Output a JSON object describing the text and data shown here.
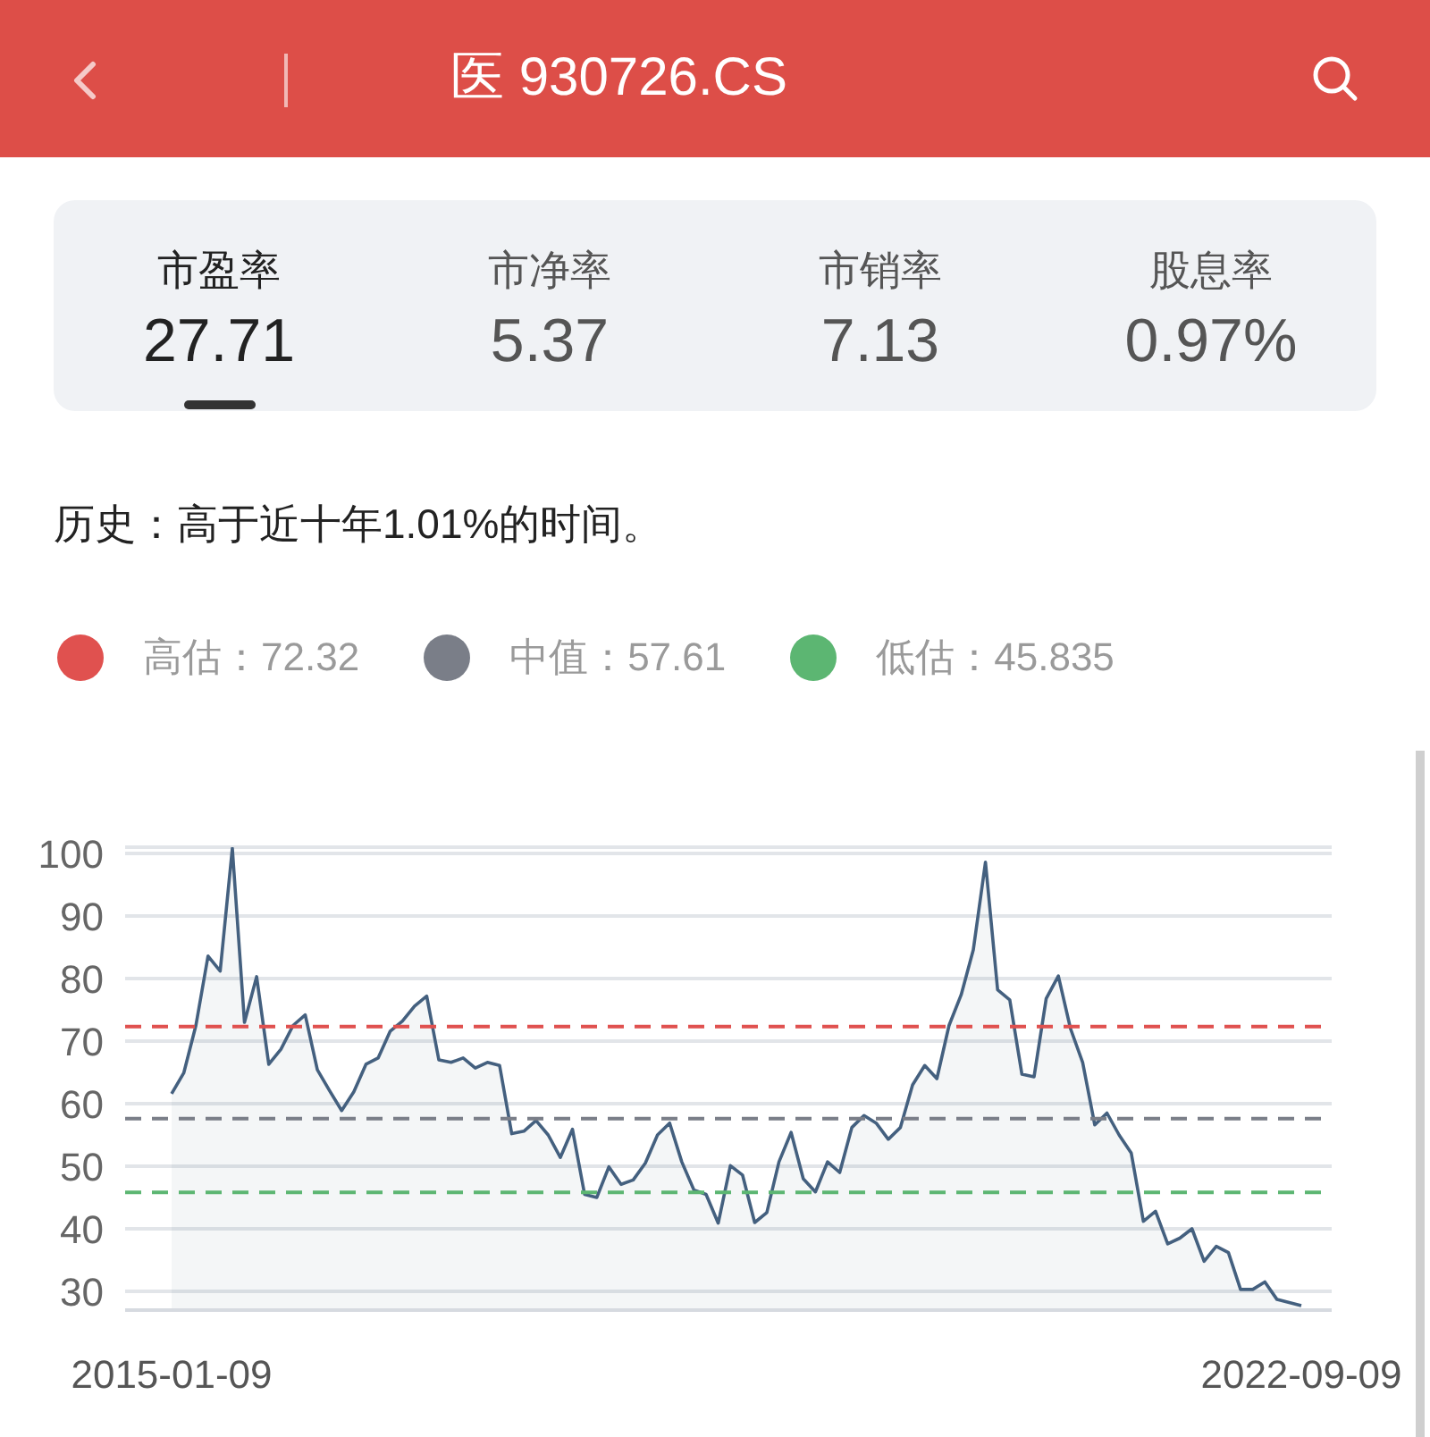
{
  "chart_data": {
    "type": "area",
    "title": "医 930726.CS",
    "subtitle": "历史：高于近十年1.01%的时间。",
    "annotations": [
      "市盈率",
      "27.71",
      "市净率",
      "5.37",
      "市销率",
      "7.13",
      "股息率",
      "0.97%"
    ],
    "categories": [
      "2015-01-09",
      null,
      null,
      null,
      null,
      null,
      null,
      null,
      null,
      null,
      null,
      null,
      null,
      null,
      null,
      null,
      null,
      null,
      null,
      null,
      null,
      null,
      null,
      null,
      null,
      null,
      null,
      null,
      null,
      null,
      null,
      null,
      null,
      null,
      null,
      null,
      null,
      null,
      null,
      null,
      null,
      null,
      null,
      null,
      null,
      null,
      null,
      null,
      null,
      null,
      null,
      null,
      null,
      null,
      null,
      null,
      null,
      null,
      null,
      null,
      null,
      null,
      null,
      null,
      null,
      null,
      null,
      null,
      null,
      null,
      null,
      null,
      null,
      null,
      null,
      null,
      null,
      null,
      null,
      null,
      null,
      null,
      null,
      null,
      null,
      null,
      null,
      null,
      null,
      null,
      null,
      null,
      null,
      "2022-09-09"
    ],
    "values": [
      61.6,
      64.9,
      72.5,
      83.6,
      81.2,
      100.8,
      73.0,
      80.3,
      66.3,
      68.7,
      72.5,
      74.2,
      65.4,
      62.1,
      58.9,
      61.9,
      66.3,
      67.3,
      71.6,
      73.2,
      75.6,
      77.2,
      67.0,
      66.6,
      67.3,
      65.7,
      66.6,
      66.1,
      55.2,
      55.6,
      57.3,
      55.0,
      51.4,
      55.9,
      45.5,
      45.0,
      49.9,
      47.1,
      47.8,
      50.5,
      55.0,
      56.9,
      50.7,
      46.2,
      45.5,
      40.9,
      50.1,
      48.6,
      41.0,
      42.6,
      50.7,
      55.4,
      48.0,
      45.9,
      50.7,
      49.0,
      56.2,
      58.1,
      56.9,
      54.3,
      56.2,
      63.0,
      66.1,
      64.0,
      72.5,
      77.4,
      84.6,
      98.6,
      78.2,
      76.6,
      64.7,
      64.3,
      76.8,
      80.4,
      72.0,
      66.6,
      56.6,
      58.5,
      55.0,
      52.1,
      41.2,
      42.8,
      37.6,
      38.5,
      40.0,
      34.8,
      37.2,
      36.2,
      30.3,
      30.3,
      31.5,
      28.7,
      28.2,
      27.7
    ],
    "color": "#44607f",
    "ylim": [
      27,
      101
    ],
    "yticks": [
      30,
      40,
      50,
      60,
      70,
      80,
      90,
      100
    ],
    "grid": "y",
    "legend": "top left",
    "ref_lines": [
      {
        "axis": "y",
        "value": 72.32,
        "label": "高估：72.32",
        "color": "#e0514f",
        "line_style": "dashed"
      },
      {
        "axis": "y",
        "value": 57.61,
        "label": "中值：57.61",
        "color": "#7a7e88",
        "line_style": "dashed"
      },
      {
        "axis": "y",
        "value": 45.835,
        "label": "低估：45.835",
        "color": "#5cb672",
        "line_style": "dashed"
      }
    ]
  }
}
